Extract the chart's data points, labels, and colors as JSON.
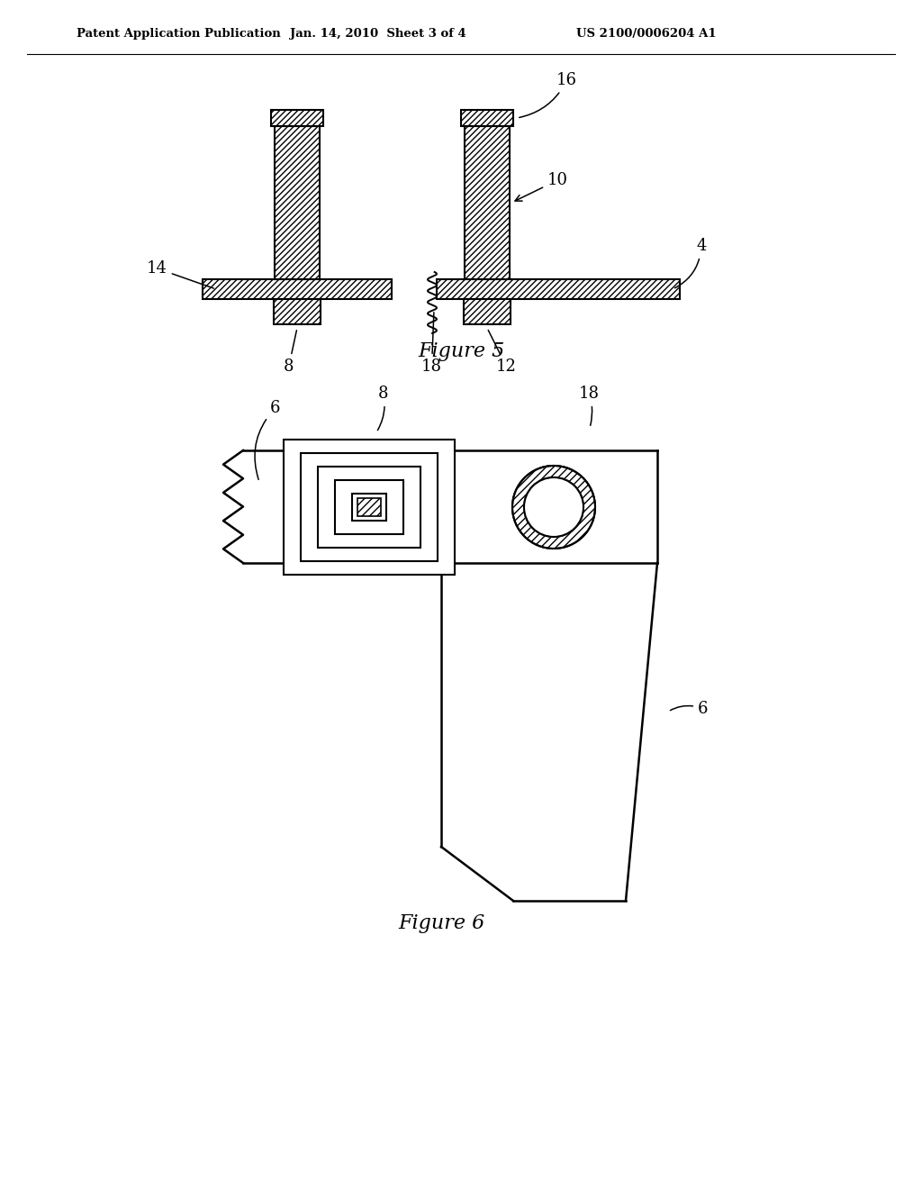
{
  "header_left": "Patent Application Publication",
  "header_mid": "Jan. 14, 2010  Sheet 3 of 4",
  "header_right": "US 2100/0006204 A1",
  "fig5_caption": "Figure 5",
  "fig6_caption": "Figure 6",
  "bg_color": "#ffffff",
  "line_color": "#000000"
}
